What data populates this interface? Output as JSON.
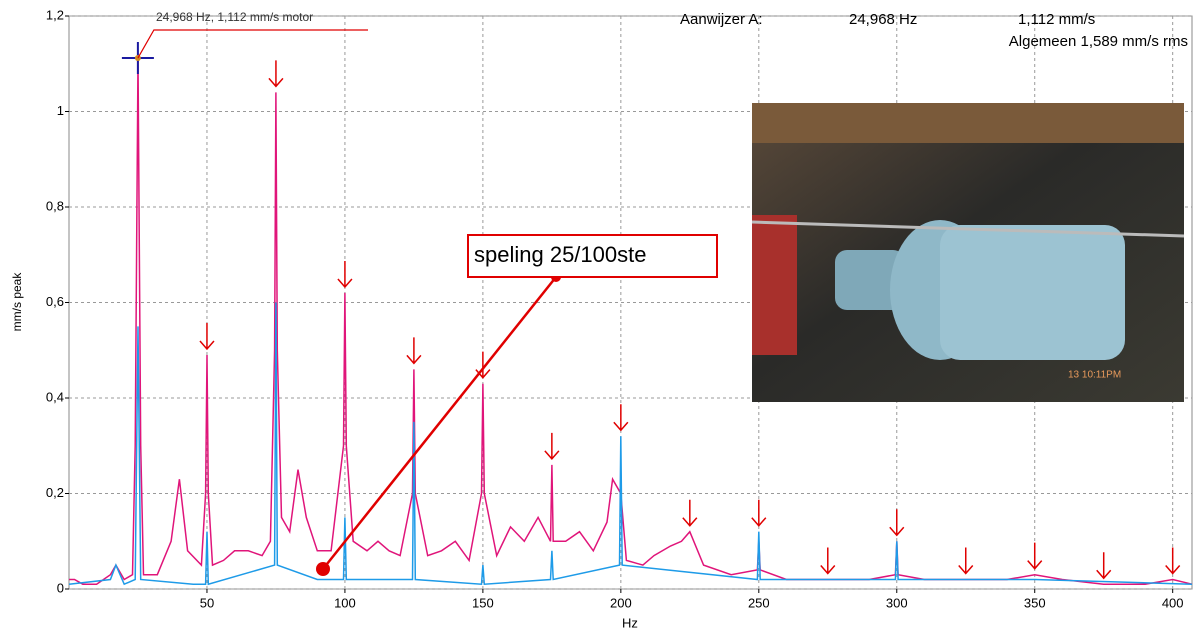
{
  "chart_data": {
    "type": "line",
    "ylabel": "mm/s peak",
    "xlabel": "Hz",
    "xlim": [
      0,
      407
    ],
    "xticks": [
      50,
      100,
      150,
      200,
      250,
      300,
      350,
      400
    ],
    "ylim": [
      0,
      1.2
    ],
    "yticks": [
      0,
      {
        "value": 0.2,
        "label": "0,2"
      },
      {
        "value": 0.4,
        "label": "0,4"
      },
      {
        "value": 0.6,
        "label": "0,6"
      },
      {
        "value": 0.8,
        "label": "0,8"
      },
      1,
      {
        "value": 1.2,
        "label": "1,2"
      }
    ],
    "grid": true,
    "cursor": {
      "x": 24.968,
      "y": 1.112,
      "label": "24,968 Hz, 1,112 mm/s motor"
    },
    "readout": {
      "title": "Aanwijzer A:",
      "frequency": "24,968 Hz",
      "amplitude": "1,112 mm/s",
      "overall": "Algemeen 1,589 mm/s rms"
    },
    "callout": "speling 25/100ste",
    "photo_timestamp": "13 10:11PM",
    "harmonic_markers": [
      50,
      75,
      100,
      125,
      150,
      175,
      200,
      225,
      250,
      275,
      300,
      325,
      350,
      375,
      400
    ],
    "marker_color": "#e00000",
    "series": [
      {
        "color": "#e0157a",
        "x": [
          0,
          2,
          5,
          10,
          15,
          17,
          20,
          23,
          24,
          25,
          26,
          27,
          32,
          37,
          40,
          43,
          48,
          49.5,
          50,
          50.5,
          52,
          56,
          60,
          65,
          70,
          73,
          74.5,
          75,
          75.5,
          77,
          80,
          83,
          86,
          90,
          95,
          99.5,
          100,
          100.5,
          103,
          108,
          112,
          116,
          120,
          124.5,
          125,
          125.5,
          130,
          135,
          140,
          145,
          149.5,
          150,
          150.5,
          155,
          160,
          165,
          170,
          174.5,
          175,
          175.5,
          180,
          185,
          190,
          195,
          197,
          200,
          202,
          208,
          212,
          218,
          222,
          225,
          230,
          240,
          249.5,
          250,
          250.5,
          260,
          275,
          290,
          299.5,
          300,
          300.5,
          310,
          325,
          340,
          350,
          360,
          375,
          390,
          400,
          407
        ],
        "values": [
          0.02,
          0.02,
          0.01,
          0.01,
          0.03,
          0.05,
          0.02,
          0.03,
          0.3,
          1.112,
          0.3,
          0.03,
          0.03,
          0.1,
          0.23,
          0.08,
          0.05,
          0.2,
          0.49,
          0.2,
          0.05,
          0.06,
          0.08,
          0.08,
          0.07,
          0.1,
          0.5,
          1.04,
          0.5,
          0.15,
          0.12,
          0.25,
          0.15,
          0.08,
          0.08,
          0.3,
          0.62,
          0.3,
          0.1,
          0.08,
          0.1,
          0.08,
          0.07,
          0.2,
          0.46,
          0.2,
          0.07,
          0.08,
          0.1,
          0.06,
          0.2,
          0.43,
          0.2,
          0.07,
          0.13,
          0.1,
          0.15,
          0.1,
          0.26,
          0.1,
          0.1,
          0.12,
          0.08,
          0.14,
          0.23,
          0.2,
          0.06,
          0.05,
          0.07,
          0.09,
          0.1,
          0.12,
          0.05,
          0.03,
          0.04,
          0.1,
          0.04,
          0.02,
          0.02,
          0.02,
          0.03,
          0.1,
          0.03,
          0.02,
          0.02,
          0.02,
          0.03,
          0.02,
          0.01,
          0.01,
          0.02,
          0.01
        ]
      },
      {
        "color": "#1e9be8",
        "x": [
          0,
          15,
          17,
          20,
          24,
          25,
          26,
          45,
          49.5,
          50,
          50.5,
          74.5,
          75,
          75.5,
          90,
          99.5,
          100,
          100.5,
          124.5,
          125,
          125.5,
          149.5,
          150,
          150.5,
          174.5,
          175,
          175.5,
          199.5,
          200,
          200.5,
          249.5,
          250,
          250.5,
          299.5,
          300,
          300.5,
          350,
          407
        ],
        "values": [
          0.01,
          0.02,
          0.05,
          0.01,
          0.02,
          0.55,
          0.02,
          0.01,
          0.01,
          0.12,
          0.01,
          0.05,
          0.6,
          0.05,
          0.02,
          0.02,
          0.15,
          0.02,
          0.02,
          0.35,
          0.02,
          0.01,
          0.05,
          0.01,
          0.02,
          0.08,
          0.02,
          0.05,
          0.32,
          0.05,
          0.02,
          0.12,
          0.02,
          0.02,
          0.1,
          0.02,
          0.02,
          0.01
        ]
      }
    ]
  }
}
